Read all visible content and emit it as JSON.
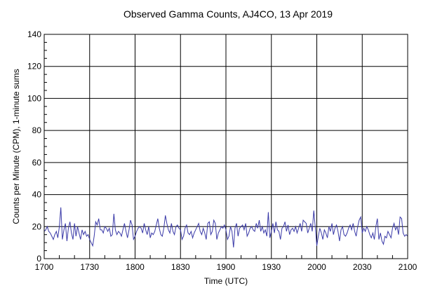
{
  "chart_data": {
    "type": "line",
    "title": "Observed Gamma Counts, AJ4CO, 13 Apr 2019",
    "xlabel": "Time (UTC)",
    "ylabel": "Counts per Minute (CPM), 1-minute sums",
    "xlim": [
      0,
      240
    ],
    "ylim": [
      0,
      140
    ],
    "grid": true,
    "x_unit": "minutes after 1700 UTC",
    "x_ticks": [
      0,
      30,
      60,
      90,
      120,
      150,
      180,
      210,
      240
    ],
    "x_tick_labels": [
      "1700",
      "1730",
      "1800",
      "1830",
      "1900",
      "1930",
      "2000",
      "2030",
      "2100"
    ],
    "y_ticks": [
      0,
      20,
      40,
      60,
      80,
      100,
      120,
      140
    ],
    "y_tick_labels": [
      "0",
      "20",
      "40",
      "60",
      "80",
      "100",
      "120",
      "140"
    ],
    "series": [
      {
        "name": "CPM",
        "color": "#3a3aa8",
        "values": [
          17,
          18,
          20,
          17,
          16,
          14,
          12,
          15,
          17,
          13,
          20,
          32,
          12,
          18,
          22,
          11,
          19,
          23,
          16,
          12,
          22,
          14,
          20,
          16,
          12,
          18,
          15,
          17,
          14,
          15,
          12,
          10,
          8,
          14,
          23,
          21,
          25,
          18,
          18,
          16,
          20,
          19,
          17,
          19,
          14,
          15,
          28,
          18,
          15,
          17,
          16,
          14,
          18,
          22,
          17,
          13,
          18,
          24,
          21,
          12,
          14,
          17,
          19,
          20,
          19,
          16,
          22,
          18,
          15,
          20,
          13,
          16,
          15,
          17,
          21,
          25,
          19,
          15,
          14,
          19,
          27,
          22,
          18,
          16,
          22,
          17,
          15,
          20,
          21,
          19,
          18,
          12,
          14,
          19,
          21,
          16,
          15,
          17,
          13,
          16,
          18,
          20,
          22,
          17,
          15,
          19,
          16,
          12,
          22,
          23,
          15,
          17,
          24,
          22,
          12,
          16,
          18,
          20,
          19,
          21,
          18,
          12,
          14,
          20,
          17,
          7,
          19,
          22,
          14,
          19,
          20,
          21,
          18,
          22,
          14,
          16,
          19,
          20,
          18,
          17,
          22,
          19,
          24,
          17,
          20,
          16,
          18,
          14,
          29,
          13,
          17,
          22,
          16,
          23,
          18,
          17,
          12,
          19,
          20,
          23,
          17,
          21,
          15,
          18,
          19,
          17,
          20,
          16,
          19,
          22,
          17,
          24,
          23,
          22,
          16,
          19,
          22,
          17,
          30,
          20,
          8,
          14,
          19,
          16,
          12,
          18,
          16,
          13,
          20,
          17,
          22,
          15,
          19,
          21,
          17,
          11,
          18,
          20,
          15,
          14,
          16,
          19,
          21,
          18,
          22,
          17,
          14,
          20,
          24,
          26,
          16,
          19,
          17,
          20,
          18,
          15,
          13,
          16,
          12,
          20,
          25,
          12,
          16,
          11,
          9,
          14,
          13,
          17,
          15,
          13,
          19,
          22,
          18,
          20,
          15,
          26,
          25,
          16,
          14,
          15,
          14
        ]
      }
    ]
  }
}
